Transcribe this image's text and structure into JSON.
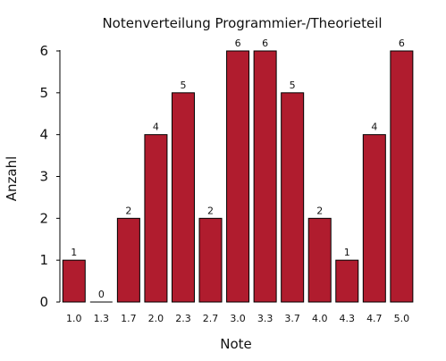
{
  "chart_data": {
    "type": "bar",
    "title": "Notenverteilung Programmier-/Theorieteil",
    "xlabel": "Note",
    "ylabel": "Anzahl",
    "categories": [
      "1.0",
      "1.3",
      "1.7",
      "2.0",
      "2.3",
      "2.7",
      "3.0",
      "3.3",
      "3.7",
      "4.0",
      "4.3",
      "4.7",
      "5.0"
    ],
    "values": [
      1,
      0,
      2,
      4,
      5,
      2,
      6,
      6,
      5,
      2,
      1,
      4,
      6
    ],
    "ylim": [
      0,
      6
    ],
    "yticks": [
      "0",
      "1",
      "2",
      "3",
      "4",
      "5",
      "6"
    ],
    "data_labels": [
      "1",
      "0",
      "2",
      "4",
      "5",
      "2",
      "6",
      "6",
      "5",
      "2",
      "1",
      "4",
      "6"
    ],
    "grid": false,
    "legend": "none",
    "colors": {
      "bar_fill": "#b01c2e",
      "bar_stroke": "#000000",
      "axis": "#000000"
    }
  }
}
